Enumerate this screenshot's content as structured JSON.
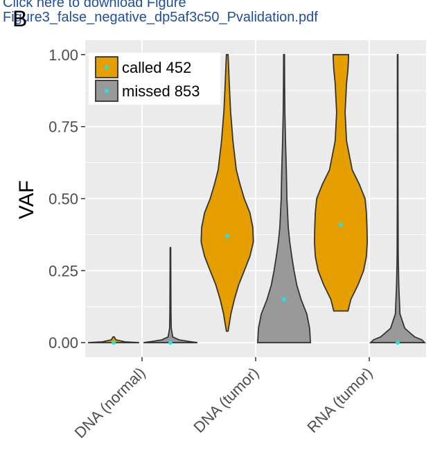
{
  "link": {
    "line1": "Click here to download Figure",
    "line2": "Figure3_false_negative_dp5af3c50_Pvalidation.pdf"
  },
  "panel_letter": "B",
  "chart_data": {
    "type": "violin",
    "ylabel": "VAF",
    "categories": [
      "DNA (normal)",
      "DNA (tumor)",
      "RNA (tumor)"
    ],
    "ylim": [
      -0.05,
      1.05
    ],
    "yticks": [
      {
        "value": 0,
        "label": "0.00"
      },
      {
        "value": 0.25,
        "label": "0.25"
      },
      {
        "value": 0.5,
        "label": "0.50"
      },
      {
        "value": 0.75,
        "label": "0.75"
      },
      {
        "value": 1,
        "label": "1.00"
      }
    ],
    "grid": true,
    "legend": "top-left",
    "median_color": "#22e3e3",
    "series": [
      {
        "name": "called 452",
        "color": "#e69f00",
        "medians": [
          0,
          0.37,
          0.41
        ],
        "violins": [
          {
            "y": [
              0,
              0.003,
              0.01,
              0.02
            ],
            "width": [
              0.9,
              0.4,
              0.08,
              0.02
            ]
          },
          {
            "y": [
              0.04,
              0.07,
              0.1,
              0.15,
              0.2,
              0.25,
              0.3,
              0.35,
              0.4,
              0.45,
              0.5,
              0.55,
              0.6,
              0.7,
              0.75,
              0.8,
              0.9,
              0.95,
              1
            ],
            "width": [
              0.03,
              0.08,
              0.13,
              0.25,
              0.4,
              0.6,
              0.8,
              0.92,
              0.9,
              0.8,
              0.6,
              0.45,
              0.32,
              0.2,
              0.16,
              0.12,
              0.07,
              0.05,
              0.03
            ]
          },
          {
            "y": [
              0.11,
              0.15,
              0.2,
              0.25,
              0.3,
              0.35,
              0.4,
              0.45,
              0.5,
              0.55,
              0.6,
              0.7,
              0.8,
              0.9,
              0.95,
              0.99,
              1
            ],
            "width": [
              0.25,
              0.35,
              0.6,
              0.8,
              0.9,
              0.93,
              0.92,
              0.9,
              0.85,
              0.65,
              0.4,
              0.2,
              0.15,
              0.2,
              0.25,
              0.27,
              0.27
            ]
          }
        ]
      },
      {
        "name": "missed 853",
        "color": "#999999",
        "medians": [
          0,
          0.15,
          0
        ],
        "violins": [
          {
            "y": [
              0,
              0.005,
              0.01,
              0.02,
              0.05,
              0.1,
              0.2,
              0.33
            ],
            "width": [
              0.95,
              0.6,
              0.3,
              0.08,
              0.03,
              0.02,
              0.015,
              0.01
            ]
          },
          {
            "y": [
              0,
              0.05,
              0.1,
              0.15,
              0.2,
              0.25,
              0.3,
              0.35,
              0.4,
              0.5,
              0.6,
              0.7,
              0.8,
              0.9,
              1
            ],
            "width": [
              0.93,
              0.9,
              0.8,
              0.6,
              0.45,
              0.35,
              0.27,
              0.2,
              0.15,
              0.1,
              0.08,
              0.05,
              0.03,
              0.02,
              0.015
            ]
          },
          {
            "y": [
              0,
              0.01,
              0.02,
              0.05,
              0.1,
              0.2,
              0.3,
              0.5,
              1
            ],
            "width": [
              0.95,
              0.85,
              0.6,
              0.25,
              0.08,
              0.04,
              0.02,
              0.012,
              0.01
            ]
          }
        ]
      }
    ]
  }
}
